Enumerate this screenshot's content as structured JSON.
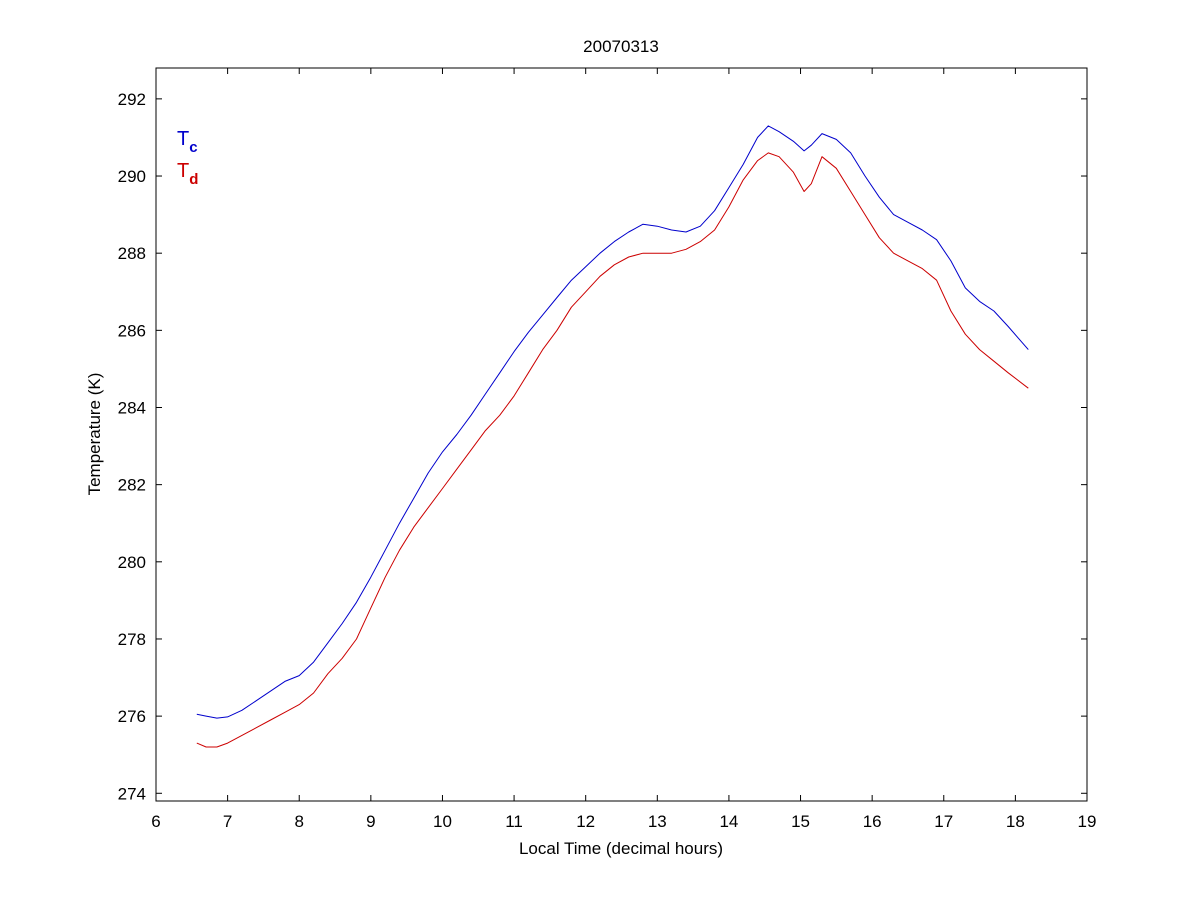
{
  "chart_data": {
    "type": "line",
    "title": "20070313",
    "xlabel": "Local Time (decimal hours)",
    "ylabel": "Temperature (K)",
    "xlim": [
      6,
      19
    ],
    "ylim": [
      273.8,
      292.8
    ],
    "xticks": [
      6,
      7,
      8,
      9,
      10,
      11,
      12,
      13,
      14,
      15,
      16,
      17,
      18,
      19
    ],
    "yticks": [
      274,
      276,
      278,
      280,
      282,
      284,
      286,
      288,
      290,
      292
    ],
    "grid": false,
    "legend": {
      "placement": "top-left"
    },
    "series": [
      {
        "name": "T",
        "subscript": "c",
        "color": "#0000cc",
        "x": [
          6.57,
          6.7,
          6.85,
          7.0,
          7.2,
          7.4,
          7.6,
          7.8,
          8.0,
          8.2,
          8.4,
          8.6,
          8.8,
          9.0,
          9.2,
          9.4,
          9.6,
          9.8,
          10.0,
          10.2,
          10.4,
          10.6,
          10.8,
          11.0,
          11.2,
          11.4,
          11.6,
          11.8,
          12.0,
          12.2,
          12.4,
          12.6,
          12.8,
          13.0,
          13.2,
          13.4,
          13.6,
          13.8,
          14.0,
          14.2,
          14.4,
          14.55,
          14.7,
          14.9,
          15.05,
          15.15,
          15.3,
          15.5,
          15.7,
          15.9,
          16.1,
          16.3,
          16.5,
          16.7,
          16.9,
          17.1,
          17.3,
          17.5,
          17.7,
          17.9,
          18.18
        ],
        "y": [
          276.05,
          276.0,
          275.95,
          275.98,
          276.15,
          276.4,
          276.65,
          276.9,
          277.05,
          277.4,
          277.9,
          278.4,
          278.95,
          279.6,
          280.3,
          281.0,
          281.65,
          282.3,
          282.85,
          283.3,
          283.8,
          284.35,
          284.9,
          285.45,
          285.95,
          286.4,
          286.85,
          287.3,
          287.65,
          288.0,
          288.3,
          288.55,
          288.75,
          288.7,
          288.6,
          288.55,
          288.7,
          289.1,
          289.7,
          290.3,
          291.0,
          291.3,
          291.15,
          290.9,
          290.65,
          290.8,
          291.1,
          290.95,
          290.6,
          290.0,
          289.45,
          289.0,
          288.8,
          288.6,
          288.35,
          287.8,
          287.1,
          286.75,
          286.5,
          286.1,
          285.5
        ]
      },
      {
        "name": "T",
        "subscript": "d",
        "color": "#cc0000",
        "x": [
          6.57,
          6.7,
          6.85,
          7.0,
          7.2,
          7.4,
          7.6,
          7.8,
          8.0,
          8.2,
          8.4,
          8.6,
          8.8,
          9.0,
          9.2,
          9.4,
          9.6,
          9.8,
          10.0,
          10.2,
          10.4,
          10.6,
          10.8,
          11.0,
          11.2,
          11.4,
          11.6,
          11.8,
          12.0,
          12.2,
          12.4,
          12.6,
          12.8,
          13.0,
          13.2,
          13.4,
          13.6,
          13.8,
          14.0,
          14.2,
          14.4,
          14.55,
          14.7,
          14.9,
          15.05,
          15.15,
          15.3,
          15.5,
          15.7,
          15.9,
          16.1,
          16.3,
          16.5,
          16.7,
          16.9,
          17.1,
          17.3,
          17.5,
          17.7,
          17.9,
          18.18
        ],
        "y": [
          275.3,
          275.2,
          275.2,
          275.3,
          275.5,
          275.7,
          275.9,
          276.1,
          276.3,
          276.6,
          277.1,
          277.5,
          278.0,
          278.8,
          279.6,
          280.3,
          280.9,
          281.4,
          281.9,
          282.4,
          282.9,
          283.4,
          283.8,
          284.3,
          284.9,
          285.5,
          286.0,
          286.6,
          287.0,
          287.4,
          287.7,
          287.9,
          288.0,
          288.0,
          288.0,
          288.1,
          288.3,
          288.6,
          289.2,
          289.9,
          290.4,
          290.6,
          290.5,
          290.1,
          289.6,
          289.8,
          290.5,
          290.2,
          289.6,
          289.0,
          288.4,
          288.0,
          287.8,
          287.6,
          287.3,
          286.5,
          285.9,
          285.5,
          285.2,
          284.9,
          284.5
        ]
      }
    ]
  }
}
